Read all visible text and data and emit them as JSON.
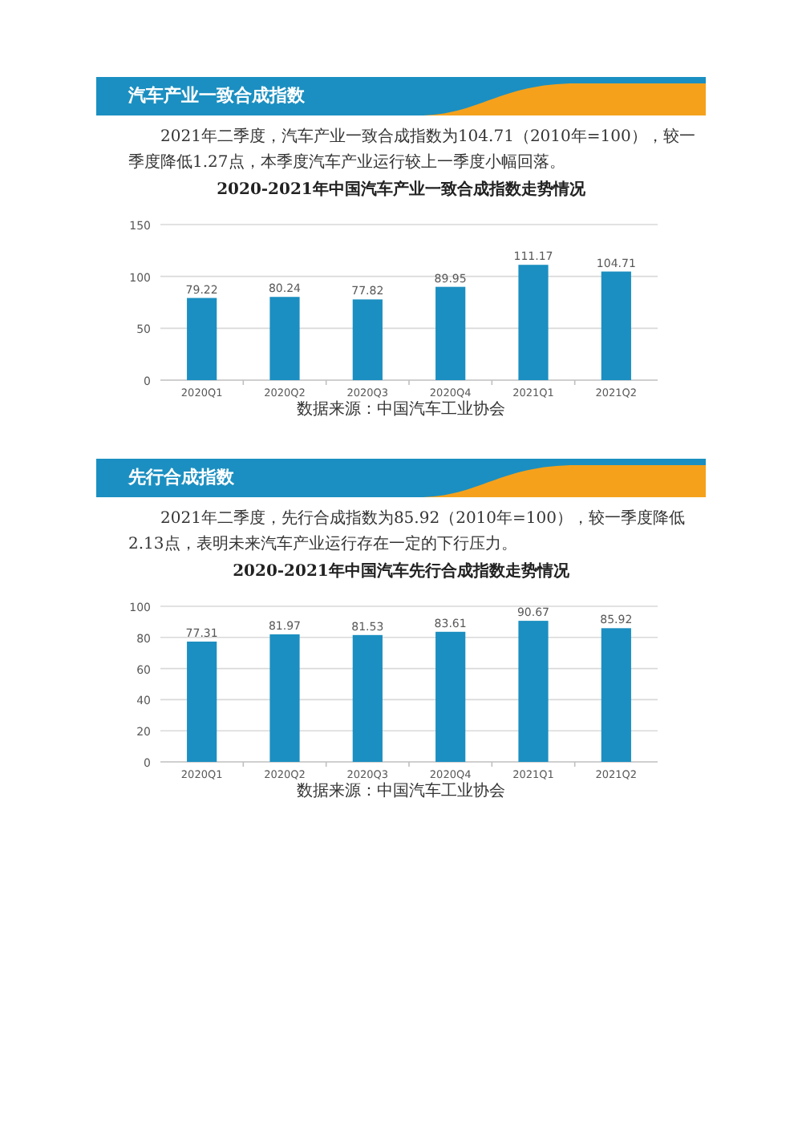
{
  "chart_data": [
    {
      "type": "bar",
      "title": "2020-2021年中国汽车产业一致合成指数走势情况",
      "annotations": [
        "汽车产业一致合成指数",
        "2021年二季度，汽车产业一致合成指数为104.71（2010年=100），较一季度降低1.27点，本季度汽车产业运行较上一季度小幅回落。",
        "数据来源：中国汽车工业协会"
      ],
      "categories": [
        "2020Q1",
        "2020Q2",
        "2020Q3",
        "2020Q4",
        "2021Q1",
        "2021Q2"
      ],
      "values": [
        79.22,
        80.24,
        77.82,
        89.95,
        111.17,
        104.71
      ],
      "color": "#1b8fc1",
      "ylim": [
        0,
        150
      ],
      "yticks": [
        0,
        50,
        100,
        150
      ],
      "grid": "y",
      "data_labels": true
    },
    {
      "type": "bar",
      "title": "2020-2021年中国汽车先行合成指数走势情况",
      "annotations": [
        "先行合成指数",
        "2021年二季度，先行合成指数为85.92（2010年=100），较一季度降低2.13点，表明未来汽车产业运行存在一定的下行压力。",
        "数据来源：中国汽车工业协会"
      ],
      "categories": [
        "2020Q1",
        "2020Q2",
        "2020Q3",
        "2020Q4",
        "2021Q1",
        "2021Q2"
      ],
      "values": [
        77.31,
        81.97,
        81.53,
        83.61,
        90.67,
        85.92
      ],
      "color": "#1b8fc1",
      "ylim": [
        0,
        100
      ],
      "yticks": [
        0,
        20,
        40,
        60,
        80,
        100
      ],
      "grid": "y",
      "data_labels": true
    }
  ]
}
